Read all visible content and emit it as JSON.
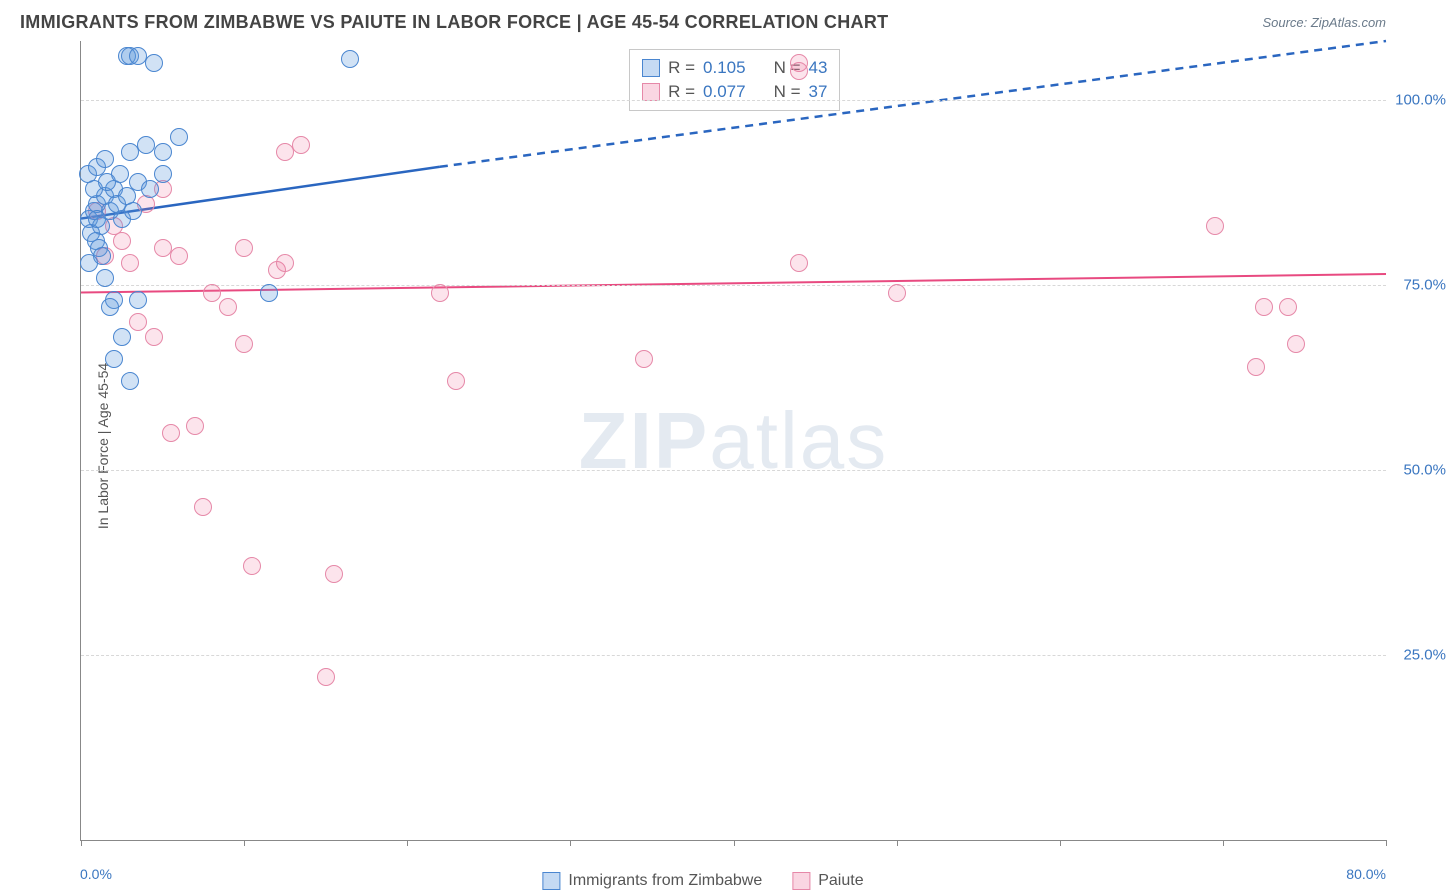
{
  "title": "IMMIGRANTS FROM ZIMBABWE VS PAIUTE IN LABOR FORCE | AGE 45-54 CORRELATION CHART",
  "source": "Source: ZipAtlas.com",
  "watermark_bold": "ZIP",
  "watermark_rest": "atlas",
  "ylabel": "In Labor Force | Age 45-54",
  "chart": {
    "type": "scatter",
    "xlim": [
      0,
      80
    ],
    "ylim": [
      0,
      108
    ],
    "xticks": [
      0,
      10,
      20,
      30,
      40,
      50,
      60,
      70,
      80
    ],
    "yticks": [
      25,
      50,
      75,
      100
    ],
    "ytick_labels": [
      "25.0%",
      "50.0%",
      "75.0%",
      "100.0%"
    ],
    "x_start_label": "0.0%",
    "x_end_label": "80.0%",
    "grid_color": "#d8d8d8",
    "axis_color": "#888888",
    "tick_label_color": "#3a76c0",
    "background_color": "#ffffff",
    "point_radius": 9
  },
  "series": {
    "blue": {
      "label": "Immigrants from Zimbabwe",
      "color_fill": "rgba(90,150,220,0.28)",
      "color_stroke": "#4a86d0",
      "R_label": "R =",
      "R_value": "0.105",
      "N_label": "N =",
      "N_value": "43",
      "trend": {
        "x1": 0,
        "y1": 84,
        "x2_solid": 22,
        "y2_solid": 91,
        "x2": 80,
        "y2": 108,
        "stroke": "#2a66c0",
        "width": 2.5
      },
      "points": [
        [
          0.5,
          84
        ],
        [
          0.8,
          85
        ],
        [
          1.0,
          86
        ],
        [
          1.2,
          83
        ],
        [
          1.5,
          87
        ],
        [
          1.8,
          85
        ],
        [
          2.0,
          88
        ],
        [
          2.2,
          86
        ],
        [
          2.5,
          84
        ],
        [
          2.8,
          87
        ],
        [
          0.6,
          82
        ],
        [
          0.9,
          81
        ],
        [
          1.1,
          80
        ],
        [
          1.3,
          79
        ],
        [
          0.5,
          78
        ],
        [
          1.5,
          76
        ],
        [
          2.0,
          73
        ],
        [
          0.4,
          90
        ],
        [
          1.0,
          91
        ],
        [
          1.5,
          92
        ],
        [
          2.8,
          106
        ],
        [
          3.0,
          106
        ],
        [
          3.5,
          106
        ],
        [
          4.5,
          105
        ],
        [
          16.5,
          105.5
        ],
        [
          3.0,
          93
        ],
        [
          4.0,
          94
        ],
        [
          5.0,
          93
        ],
        [
          6.0,
          95
        ],
        [
          3.5,
          89
        ],
        [
          4.2,
          88
        ],
        [
          5.0,
          90
        ],
        [
          2.0,
          65
        ],
        [
          2.5,
          68
        ],
        [
          3.0,
          62
        ],
        [
          11.5,
          74
        ],
        [
          3.5,
          73
        ],
        [
          1.8,
          72
        ],
        [
          0.8,
          88
        ],
        [
          1.6,
          89
        ],
        [
          2.4,
          90
        ],
        [
          3.2,
          85
        ],
        [
          1.0,
          84
        ]
      ]
    },
    "pink": {
      "label": "Paiute",
      "color_fill": "rgba(238,120,160,0.20)",
      "color_stroke": "#e688a8",
      "R_label": "R =",
      "R_value": "0.077",
      "N_label": "N =",
      "N_value": "37",
      "trend": {
        "x1": 0,
        "y1": 74,
        "x2": 80,
        "y2": 76.5,
        "stroke": "#e84a80",
        "width": 2
      },
      "points": [
        [
          1.5,
          79
        ],
        [
          2.5,
          81
        ],
        [
          3.0,
          78
        ],
        [
          4.0,
          86
        ],
        [
          5.0,
          80
        ],
        [
          6.0,
          79
        ],
        [
          8.0,
          74
        ],
        [
          9.0,
          72
        ],
        [
          12.5,
          93
        ],
        [
          13.5,
          94
        ],
        [
          12.0,
          77
        ],
        [
          12.5,
          78
        ],
        [
          10.0,
          67
        ],
        [
          7.0,
          56
        ],
        [
          5.5,
          55
        ],
        [
          22.0,
          74
        ],
        [
          23.0,
          62
        ],
        [
          15.0,
          22
        ],
        [
          15.5,
          36
        ],
        [
          10.5,
          37
        ],
        [
          7.5,
          45
        ],
        [
          34.5,
          65
        ],
        [
          44.0,
          78
        ],
        [
          50.0,
          74
        ],
        [
          44.0,
          105
        ],
        [
          44.0,
          104
        ],
        [
          69.5,
          83
        ],
        [
          72.5,
          72
        ],
        [
          74.0,
          72
        ],
        [
          74.5,
          67
        ],
        [
          72.0,
          64
        ],
        [
          3.5,
          70
        ],
        [
          4.5,
          68
        ],
        [
          1.0,
          85
        ],
        [
          2.0,
          83
        ],
        [
          10.0,
          80
        ],
        [
          5.0,
          88
        ]
      ]
    }
  },
  "bottom_legend": {
    "item1": "Immigrants from Zimbabwe",
    "item2": "Paiute"
  }
}
